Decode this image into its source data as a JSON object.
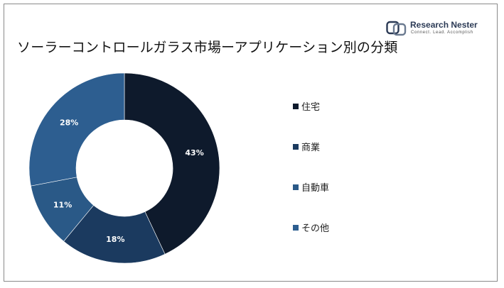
{
  "title": "ソーラーコントロールガラス市場ーアプリケーション別の分類",
  "logo": {
    "name": "Research Nester",
    "tagline": "Connect. Lead. Accomplish",
    "icon": "research-nester-logo-icon"
  },
  "chart_data": {
    "type": "pie",
    "donut": true,
    "categories": [
      "住宅",
      "商業",
      "自動車",
      "その他"
    ],
    "values": [
      43,
      18,
      11,
      28
    ],
    "value_labels": [
      "43%",
      "18%",
      "11%",
      "28%"
    ],
    "colors": [
      "#0e1a2c",
      "#1b3a5f",
      "#2a5987",
      "#2d5e90"
    ],
    "label_color": "#ffffff",
    "legend_position": "right"
  }
}
